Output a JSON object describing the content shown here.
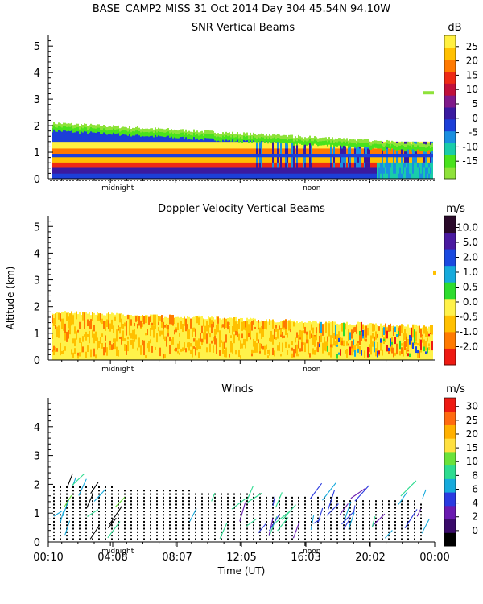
{
  "header": {
    "title": "BASE_CAMP2 MISS  31 Oct 2014 Day 304 45.54N  94.10W"
  },
  "axis": {
    "ylabel": "Altitude (km)",
    "xlabel": "Time (UT)",
    "marker_midnight": "midnight",
    "marker_noon": "noon",
    "time_ticks": [
      "00:10",
      "04:08",
      "08:07",
      "12:05",
      "16:03",
      "20:02",
      "00:00"
    ]
  },
  "colors": {
    "snr": [
      "#8ee23a",
      "#49e21c",
      "#19ccaa",
      "#1a8fe0",
      "#1c3fd8",
      "#3a1aa0",
      "#801a8a",
      "#c0103a",
      "#ee2a14",
      "#ff7a00",
      "#ffc000",
      "#fff040"
    ],
    "doppler": [
      "#ee1a12",
      "#ff7a00",
      "#ffc000",
      "#fff24a",
      "#2edc2e",
      "#16aadc",
      "#1a4ae0",
      "#4a1aa0",
      "#2a0a2a"
    ],
    "winds": [
      "#000000",
      "#3a0a6a",
      "#6a1ab0",
      "#2a3ae0",
      "#16aadc",
      "#2edc90",
      "#6ae23a",
      "#ffe040",
      "#ffb000",
      "#ff6a10",
      "#ee1a12"
    ]
  },
  "chart_data": [
    {
      "type": "heatmap",
      "title": "SNR Vertical Beams",
      "colorbar_label": "dB",
      "colorbar_ticks": [
        "25",
        "20",
        "15",
        "10",
        "5",
        "0",
        "-5",
        "-10",
        "-15"
      ],
      "ylabel": "Altitude (km)",
      "ylim": [
        0,
        5.4
      ],
      "yticks": [
        "0",
        "1",
        "2",
        "3",
        "4",
        "5"
      ],
      "xlim_hours": [
        0.17,
        24
      ],
      "echo_layer": {
        "top_km_start": 2.1,
        "top_km_end": 1.3
      },
      "markers": {
        "midnight_hour": 4.25,
        "noon_hour": 16.17
      }
    },
    {
      "type": "heatmap",
      "title": "Doppler Velocity Vertical Beams",
      "colorbar_label": "m/s",
      "colorbar_ticks": [
        "10.0",
        "5.0",
        "2.0",
        "1.0",
        "0.5",
        "0.0",
        "-0.5",
        "-1.0",
        "-2.0"
      ],
      "ylabel": "Altitude (km)",
      "ylim": [
        0,
        5.4
      ],
      "yticks": [
        "0",
        "1",
        "2",
        "3",
        "4",
        "5"
      ],
      "xlim_hours": [
        0.17,
        24
      ],
      "echo_layer": {
        "top_km_start": 1.8,
        "top_km_end": 1.25
      },
      "markers": {
        "midnight_hour": 4.25,
        "noon_hour": 16.17
      }
    },
    {
      "type": "scatter",
      "title": "Winds",
      "colorbar_label": "m/s",
      "colorbar_ticks": [
        "30",
        "25",
        "20",
        "15",
        "10",
        "8",
        "6",
        "4",
        "2",
        "0"
      ],
      "ylabel": "Altitude (km)",
      "xlabel": "Time (UT)",
      "ylim": [
        0,
        5
      ],
      "yticks": [
        "0",
        "1",
        "2",
        "3",
        "4"
      ],
      "xlim_hours": [
        0.17,
        24
      ],
      "xticks": [
        "00:10",
        "04:08",
        "08:07",
        "12:05",
        "16:03",
        "20:02",
        "00:00"
      ],
      "profile_top_km": {
        "start": 2.0,
        "end": 1.4
      },
      "markers": {
        "midnight_hour": 4.25,
        "noon_hour": 16.17
      }
    }
  ]
}
